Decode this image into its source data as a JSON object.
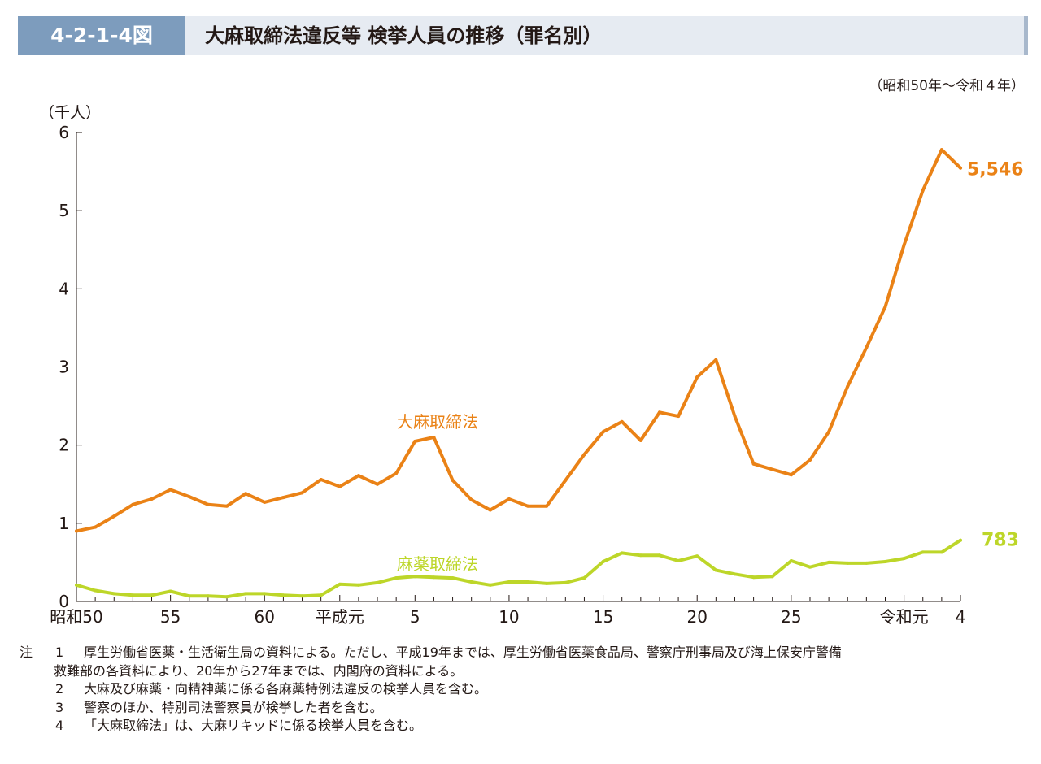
{
  "header": {
    "figure_number": "4-2-1-4図",
    "title": "大麻取締法違反等 検挙人員の推移（罪名別）"
  },
  "period": "（昭和50年～令和４年）",
  "colors": {
    "header_bg": "#e6ebf2",
    "figure_number_bg": "#7d9cbd",
    "cannabis": "#ea8216",
    "narcotics": "#bdd629"
  },
  "chart_data": {
    "type": "line",
    "ylabel": "（千人）",
    "ylim": [
      0,
      6
    ],
    "yticks": [
      0,
      1,
      2,
      3,
      4,
      5,
      6
    ],
    "x_years_count": 48,
    "x_tick_labels": [
      {
        "index": 0,
        "label": "昭和50"
      },
      {
        "index": 5,
        "label": "55"
      },
      {
        "index": 10,
        "label": "60"
      },
      {
        "index": 14,
        "label": "平成元"
      },
      {
        "index": 18,
        "label": "5"
      },
      {
        "index": 23,
        "label": "10"
      },
      {
        "index": 28,
        "label": "15"
      },
      {
        "index": 33,
        "label": "20"
      },
      {
        "index": 38,
        "label": "25"
      },
      {
        "index": 44,
        "label": "令和元"
      },
      {
        "index": 47,
        "label": "4"
      }
    ],
    "series": [
      {
        "name": "大麻取締法",
        "color": "#ea8216",
        "end_label": "5,546",
        "values": [
          0.9,
          0.95,
          1.09,
          1.24,
          1.31,
          1.43,
          1.34,
          1.24,
          1.22,
          1.38,
          1.27,
          1.33,
          1.39,
          1.56,
          1.47,
          1.61,
          1.5,
          1.64,
          2.05,
          2.1,
          1.55,
          1.3,
          1.17,
          1.31,
          1.22,
          1.22,
          1.55,
          1.88,
          2.17,
          2.3,
          2.06,
          2.42,
          2.37,
          2.87,
          3.09,
          2.37,
          1.76,
          1.69,
          1.62,
          1.81,
          2.17,
          2.75,
          3.25,
          3.77,
          4.56,
          5.26,
          5.78,
          5.546
        ]
      },
      {
        "name": "麻薬取締法",
        "color": "#bdd629",
        "end_label": "783",
        "values": [
          0.21,
          0.14,
          0.1,
          0.08,
          0.08,
          0.13,
          0.07,
          0.07,
          0.06,
          0.1,
          0.1,
          0.08,
          0.07,
          0.08,
          0.22,
          0.21,
          0.24,
          0.3,
          0.32,
          0.31,
          0.3,
          0.25,
          0.21,
          0.25,
          0.25,
          0.23,
          0.24,
          0.3,
          0.51,
          0.62,
          0.59,
          0.59,
          0.52,
          0.58,
          0.4,
          0.35,
          0.31,
          0.32,
          0.52,
          0.44,
          0.5,
          0.49,
          0.49,
          0.51,
          0.55,
          0.63,
          0.63,
          0.783
        ]
      }
    ]
  },
  "notes": [
    {
      "head": "注",
      "num": "1",
      "text": "厚生労働省医薬・生活衛生局の資料による。ただし、平成19年までは、厚生労働省医薬食品局、警察庁刑事局及び海上保安庁警備"
    },
    {
      "head": "",
      "num": "",
      "text": "救難部の各資料により、20年から27年までは、内閣府の資料による。",
      "continuation": true
    },
    {
      "head": "",
      "num": "2",
      "text": "大麻及び麻薬・向精神薬に係る各麻薬特例法違反の検挙人員を含む。"
    },
    {
      "head": "",
      "num": "3",
      "text": "警察のほか、特別司法警察員が検挙した者を含む。"
    },
    {
      "head": "",
      "num": "4",
      "text": "「大麻取締法」は、大麻リキッドに係る検挙人員を含む。"
    }
  ]
}
